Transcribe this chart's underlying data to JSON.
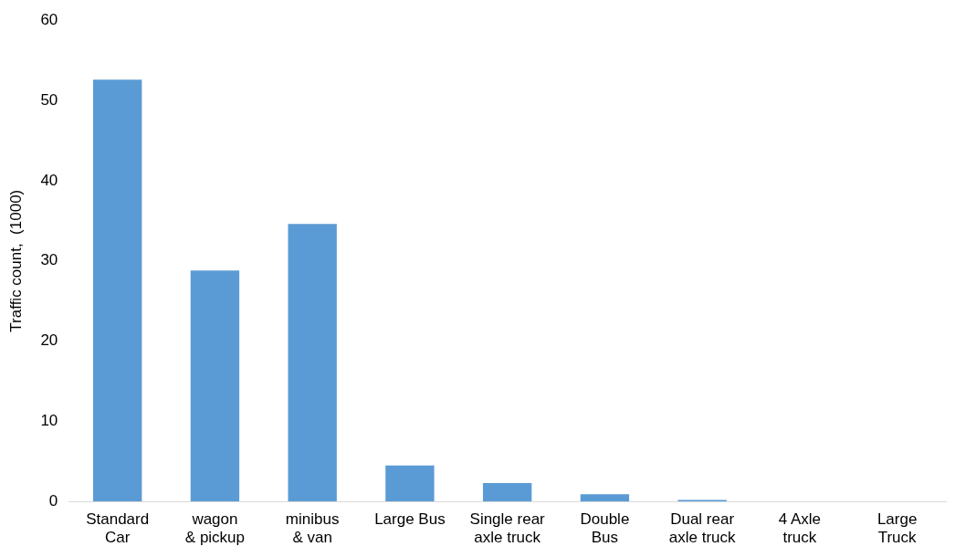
{
  "chart_data": {
    "type": "bar",
    "ylabel": "Traffic count,  (1000)",
    "categories": [
      "Standard\nCar",
      "wagon\n& pickup",
      "minibus\n& van",
      "Large Bus",
      "Single rear\naxle truck",
      "Double\nBus",
      "Dual rear\naxle truck",
      "4 Axle\ntruck",
      "Large\nTruck"
    ],
    "values": [
      52.6,
      28.8,
      34.6,
      4.5,
      2.3,
      0.9,
      0.2,
      0,
      0
    ],
    "color": "#5b9bd5",
    "ylim": [
      0,
      60
    ],
    "yticks": [
      0,
      10,
      20,
      30,
      40,
      50,
      60
    ],
    "grid": false,
    "legend": false
  }
}
